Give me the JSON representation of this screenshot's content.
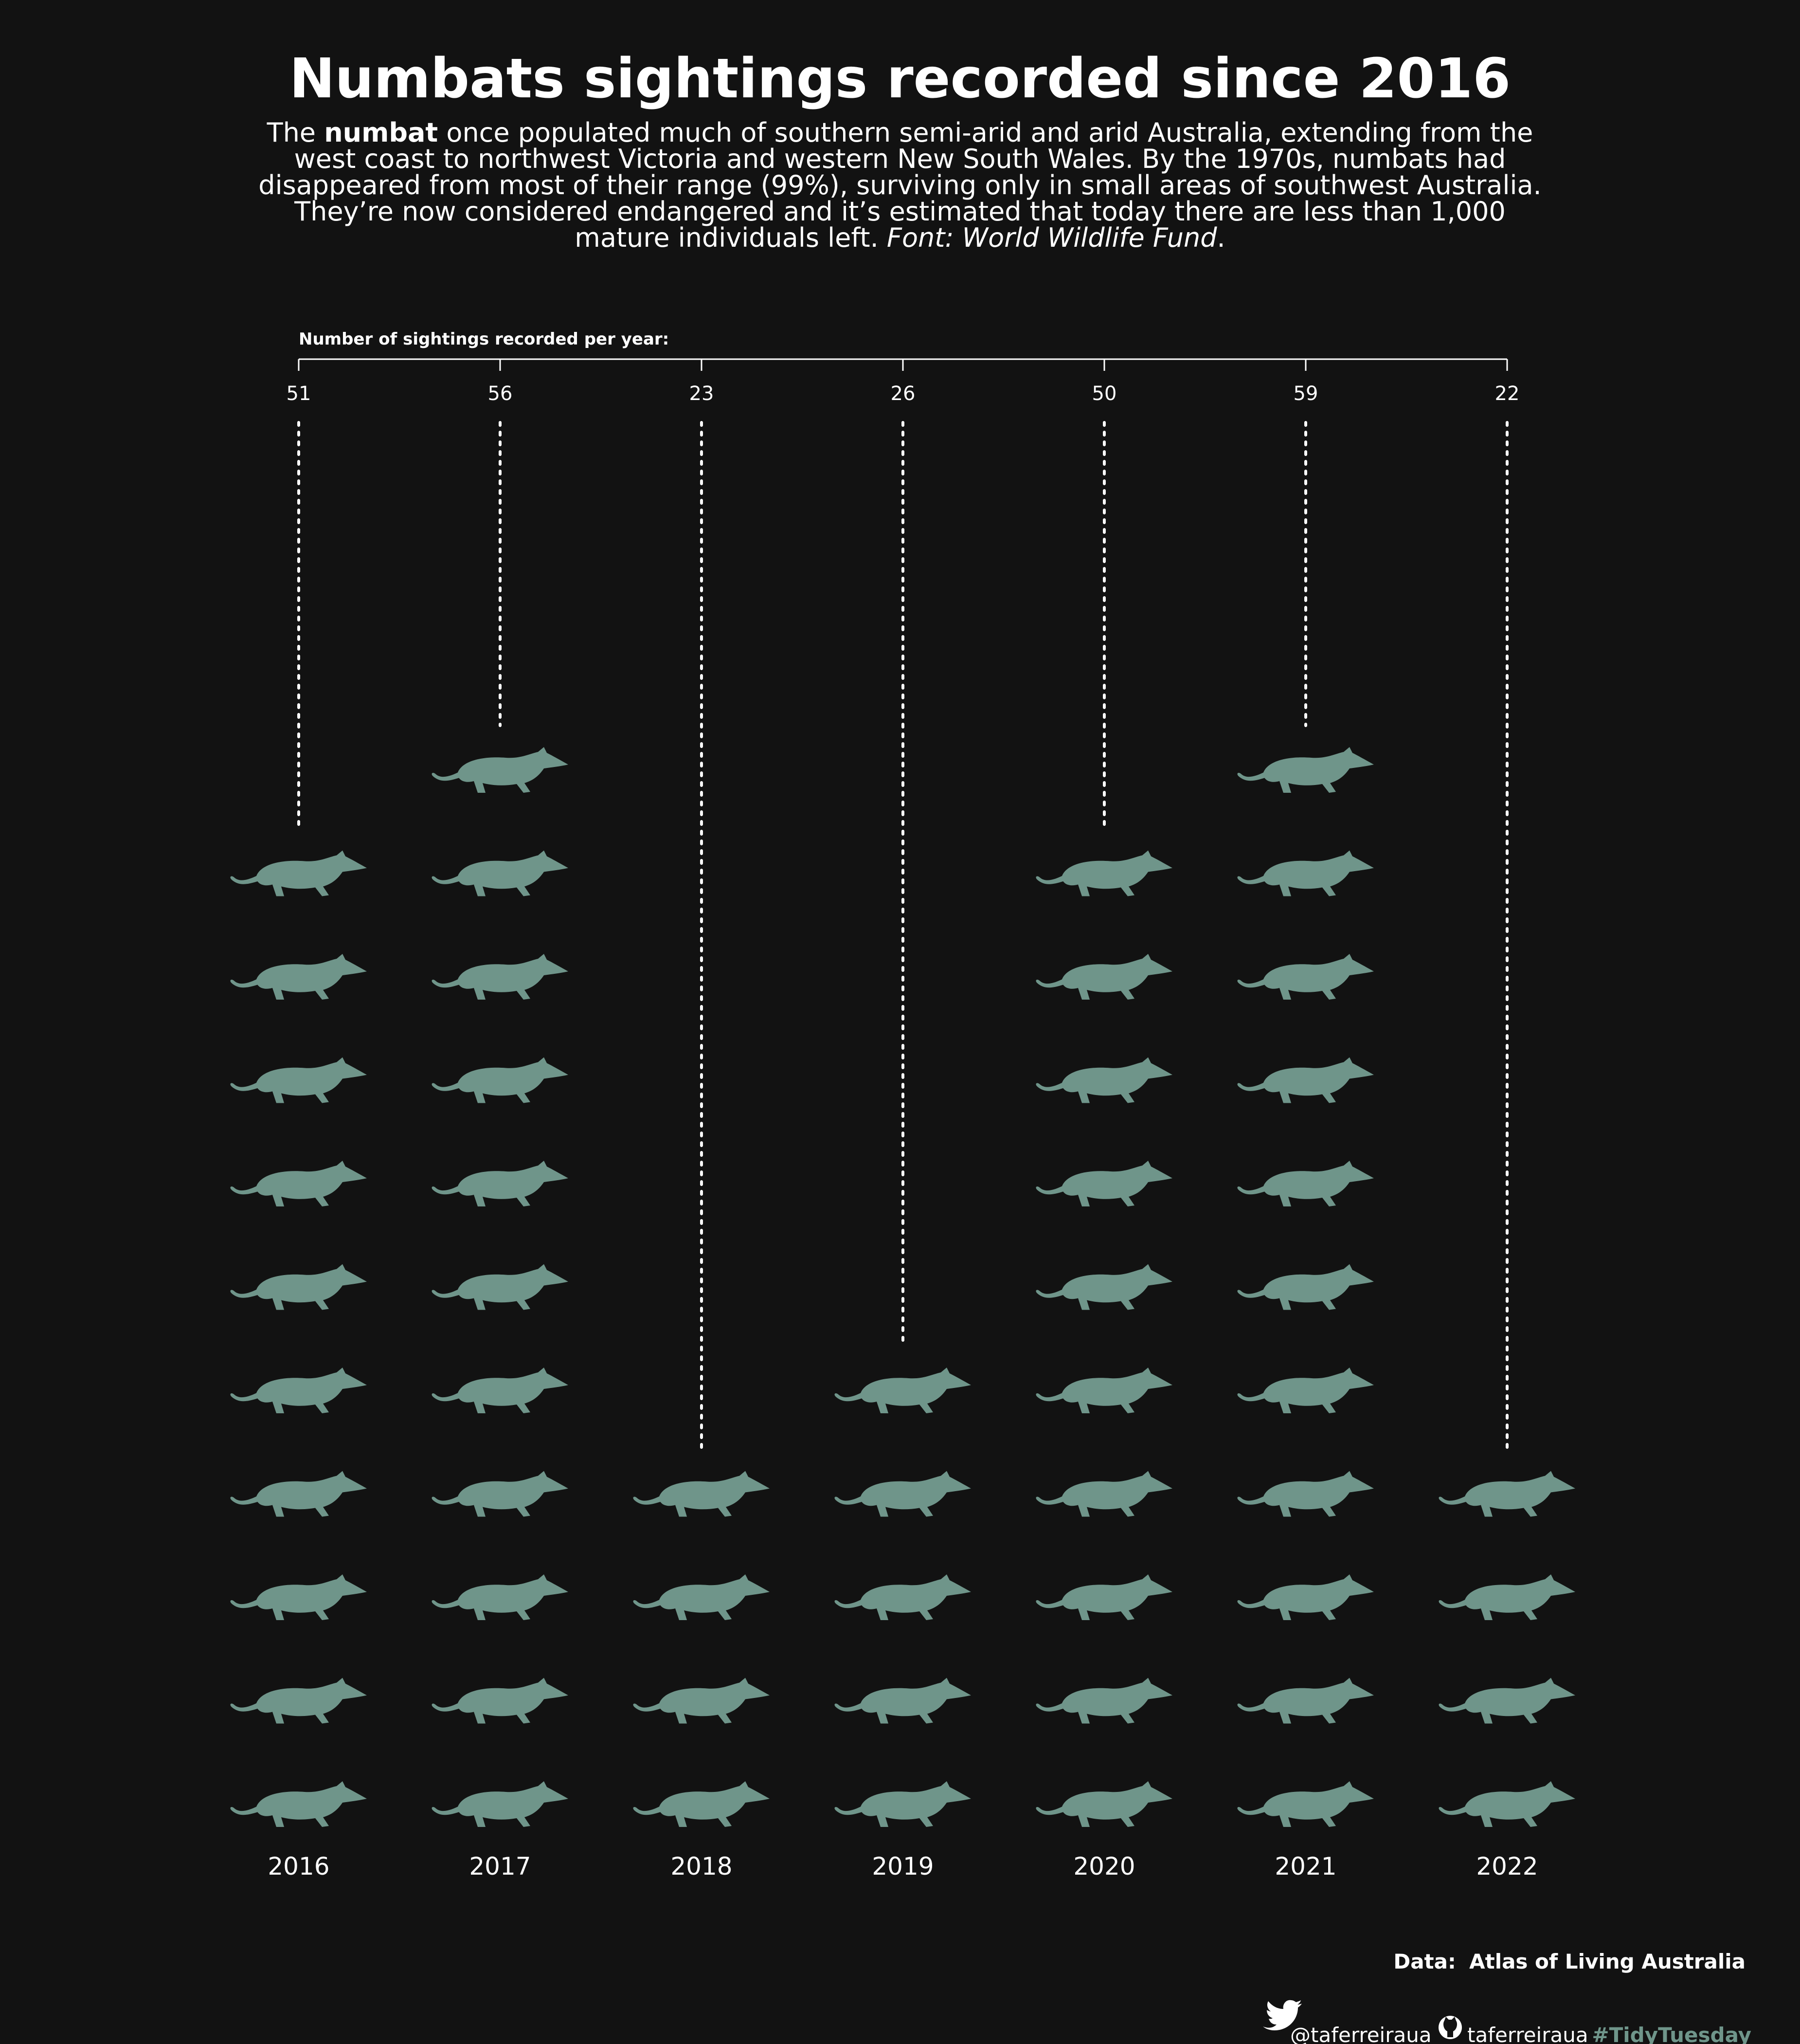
{
  "colors": {
    "background": "#121212",
    "icon": "#6f958a",
    "text": "#ffffff",
    "hashtag": "#6f958a"
  },
  "header": {
    "title": "Numbats sightings recorded since 2016",
    "subtitle_lines": [
      [
        {
          "t": "The "
        },
        {
          "t": "numbat",
          "b": true
        },
        {
          "t": " once populated much of southern semi-arid and arid Australia, extending from the"
        }
      ],
      [
        {
          "t": "west coast to northwest Victoria and western New South Wales. By the 1970s, numbats had"
        }
      ],
      [
        {
          "t": "disappeared from most of their range (99%), surviving only in small areas of southwest Australia."
        }
      ],
      [
        {
          "t": "They’re now considered endangered and it’s estimated that today there are less than 1,000"
        }
      ],
      [
        {
          "t": "mature individuals left. "
        },
        {
          "t": "Font: World Wildlife Fund",
          "i": true
        },
        {
          "t": "."
        }
      ]
    ]
  },
  "chart_data": {
    "type": "pictogram",
    "title": "Numbats sightings recorded since 2016",
    "axis_title": "Number of sightings recorded per year:",
    "categories": [
      "2016",
      "2017",
      "2018",
      "2019",
      "2020",
      "2021",
      "2022"
    ],
    "values": [
      51,
      56,
      23,
      26,
      50,
      59,
      22
    ],
    "icon_units": "1 numbat icon ≈ 5 sightings",
    "icons": [
      10,
      11,
      4,
      5,
      10,
      11,
      4
    ],
    "icon_name": "numbat"
  },
  "caption": {
    "data_label": "Data:",
    "data_source": "Atlas of Living Australia",
    "twitter_handle": "@taferreiraua",
    "github_handle": "taferreiraua",
    "hashtag": "#TidyTuesday"
  }
}
